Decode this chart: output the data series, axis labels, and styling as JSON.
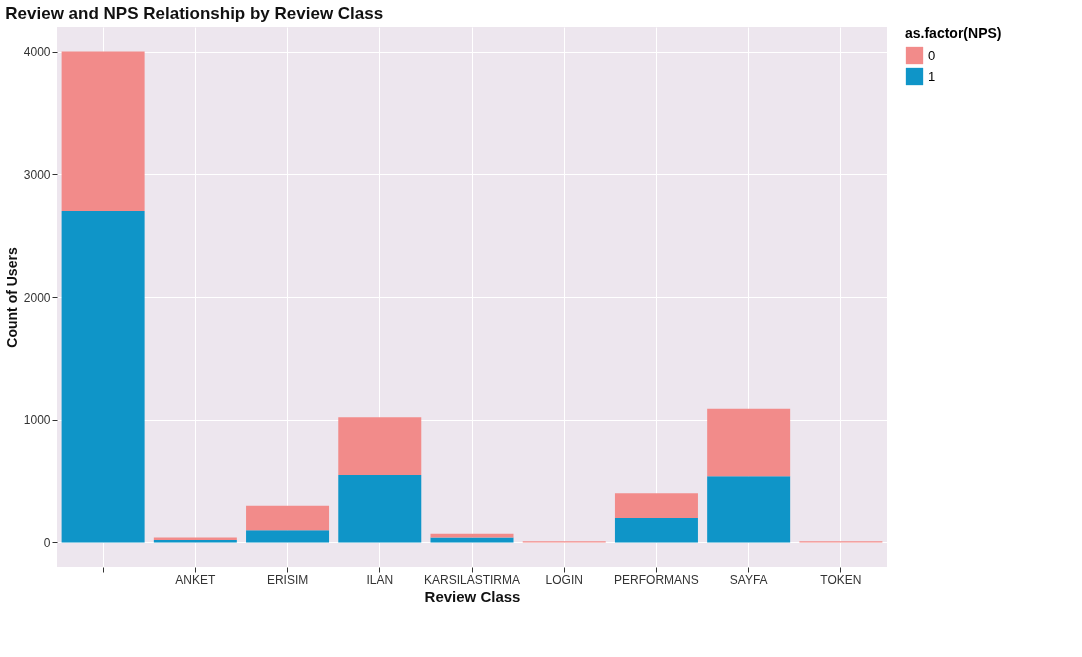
{
  "chart_data": {
    "type": "bar",
    "title": "Review and NPS Relationship by Review Class",
    "xlabel": "Review Class",
    "ylabel": "Count of Users",
    "legend_title": "as.factor(NPS)",
    "categories": [
      null,
      "ANKET",
      "ERISIM",
      "ILAN",
      "KARSILASTIRMA",
      "LOGIN",
      "PERFORMANS",
      "SAYFA",
      "TOKEN"
    ],
    "stacked": true,
    "series": [
      {
        "name": "1",
        "color": "#0f95c8",
        "values": [
          2700,
          20,
          100,
          550,
          40,
          null,
          200,
          540,
          null
        ]
      },
      {
        "name": "0",
        "color": "#f28b8a",
        "values": [
          1300,
          20,
          200,
          470,
          30,
          10,
          200,
          550,
          10
        ]
      }
    ],
    "ylim": [
      -200,
      4200
    ],
    "yticks": [
      0,
      1000,
      2000,
      3000,
      4000
    ],
    "grid": true,
    "legend": "right"
  }
}
